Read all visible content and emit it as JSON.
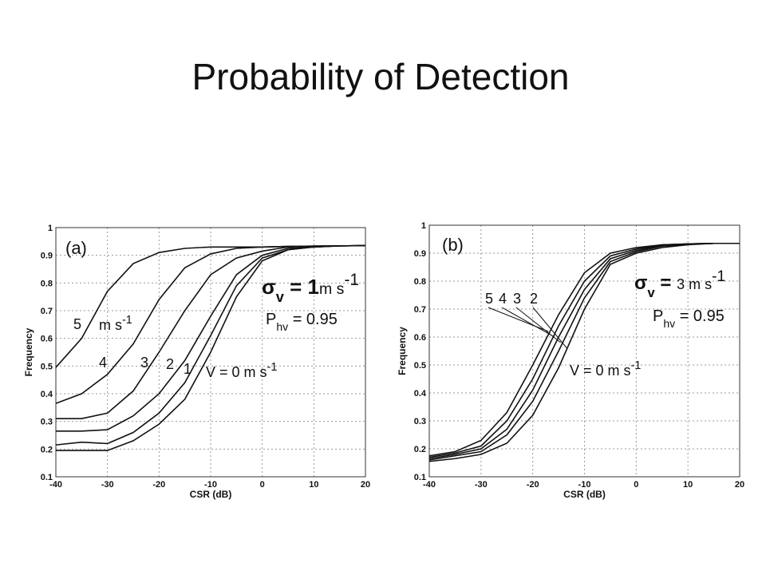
{
  "title": "Probability of Detection",
  "chart_data": [
    {
      "type": "line",
      "x_label": "CSR (dB)",
      "y_label": "Frequency",
      "grid": true,
      "color": "#111111",
      "x": [
        -40,
        -35,
        -30,
        -25,
        -20,
        -15,
        -10,
        -5,
        0,
        5,
        10,
        15,
        20
      ],
      "xlim": [
        -40,
        20
      ],
      "xticks": [
        -40,
        -30,
        -20,
        -10,
        0,
        10,
        20
      ],
      "ylim": [
        0.1,
        1
      ],
      "yticks": [
        0.1,
        0.2,
        0.3,
        0.4,
        0.5,
        0.6,
        0.7,
        0.8,
        0.9,
        1
      ],
      "series": [
        {
          "name": "5",
          "values": [
            0.495,
            0.6,
            0.77,
            0.87,
            0.91,
            0.925,
            0.93,
            0.93,
            0.93,
            0.932,
            0.933,
            0.934,
            0.935
          ]
        },
        {
          "name": "4",
          "values": [
            0.365,
            0.4,
            0.47,
            0.58,
            0.74,
            0.855,
            0.905,
            0.925,
            0.93,
            0.932,
            0.933,
            0.934,
            0.935
          ]
        },
        {
          "name": "3",
          "values": [
            0.31,
            0.31,
            0.33,
            0.41,
            0.55,
            0.7,
            0.83,
            0.89,
            0.915,
            0.93,
            0.933,
            0.934,
            0.935
          ]
        },
        {
          "name": "2",
          "values": [
            0.265,
            0.265,
            0.27,
            0.32,
            0.4,
            0.52,
            0.68,
            0.83,
            0.9,
            0.925,
            0.93,
            0.934,
            0.935
          ]
        },
        {
          "name": "1",
          "values": [
            0.215,
            0.225,
            0.22,
            0.26,
            0.33,
            0.44,
            0.61,
            0.79,
            0.89,
            0.92,
            0.93,
            0.934,
            0.935
          ]
        },
        {
          "values": [
            0.195,
            0.195,
            0.195,
            0.23,
            0.29,
            0.38,
            0.55,
            0.75,
            0.88,
            0.92,
            0.93,
            0.934,
            0.935
          ]
        }
      ],
      "annotations": [
        {
          "parts": [
            {
              "text": "(a)"
            }
          ]
        },
        {
          "parts": [
            {
              "text": "σ"
            },
            {
              "text": "v",
              "shift": "sub"
            },
            {
              "text": " = 1"
            },
            {
              "text": "m s"
            },
            {
              "text": "-1",
              "shift": "sup"
            }
          ]
        },
        {
          "parts": [
            {
              "text": "P"
            },
            {
              "text": "hv",
              "shift": "sub"
            },
            {
              "text": " = 0.95"
            }
          ]
        },
        {
          "parts": [
            {
              "text": "m s"
            },
            {
              "text": "-1",
              "shift": "sup"
            }
          ]
        },
        {
          "parts": [
            {
              "text": "V = 0 m s"
            },
            {
              "text": "-1",
              "shift": "sup"
            }
          ]
        }
      ]
    },
    {
      "type": "line",
      "x_label": "CSR (dB)",
      "y_label": "Frequency",
      "grid": true,
      "color": "#111111",
      "x": [
        -40,
        -35,
        -30,
        -25,
        -20,
        -15,
        -10,
        -5,
        0,
        5,
        10,
        15,
        20
      ],
      "xlim": [
        -40,
        20
      ],
      "xticks": [
        -40,
        -30,
        -20,
        -10,
        0,
        10,
        20
      ],
      "ylim": [
        0.1,
        1
      ],
      "yticks": [
        0.1,
        0.2,
        0.3,
        0.4,
        0.5,
        0.6,
        0.7,
        0.8,
        0.9,
        1
      ],
      "series": [
        {
          "name": "5",
          "values": [
            0.175,
            0.19,
            0.23,
            0.33,
            0.5,
            0.68,
            0.83,
            0.9,
            0.92,
            0.93,
            0.933,
            0.935,
            0.935
          ]
        },
        {
          "name": "4",
          "values": [
            0.17,
            0.185,
            0.21,
            0.3,
            0.45,
            0.64,
            0.8,
            0.89,
            0.915,
            0.93,
            0.933,
            0.935,
            0.935
          ]
        },
        {
          "name": "3",
          "values": [
            0.165,
            0.18,
            0.2,
            0.27,
            0.41,
            0.6,
            0.77,
            0.88,
            0.91,
            0.928,
            0.933,
            0.935,
            0.935
          ]
        },
        {
          "name": "2",
          "values": [
            0.16,
            0.175,
            0.19,
            0.25,
            0.37,
            0.55,
            0.74,
            0.87,
            0.905,
            0.925,
            0.932,
            0.935,
            0.935
          ]
        },
        {
          "values": [
            0.155,
            0.165,
            0.18,
            0.22,
            0.32,
            0.49,
            0.7,
            0.86,
            0.9,
            0.92,
            0.93,
            0.935,
            0.935
          ]
        }
      ],
      "annotations": [
        {
          "parts": [
            {
              "text": "(b)"
            }
          ]
        },
        {
          "parts": [
            {
              "text": "σ"
            },
            {
              "text": "v",
              "shift": "sub"
            },
            {
              "text": " = "
            },
            {
              "text": "3 m s"
            },
            {
              "text": "-1",
              "shift": "sup"
            }
          ]
        },
        {
          "parts": [
            {
              "text": "P"
            },
            {
              "text": "hv",
              "shift": "sub"
            },
            {
              "text": " = 0.95"
            }
          ]
        },
        {
          "parts": [
            {
              "text": "V = 0 m s"
            },
            {
              "text": "-1",
              "shift": "sup"
            }
          ]
        }
      ]
    }
  ]
}
